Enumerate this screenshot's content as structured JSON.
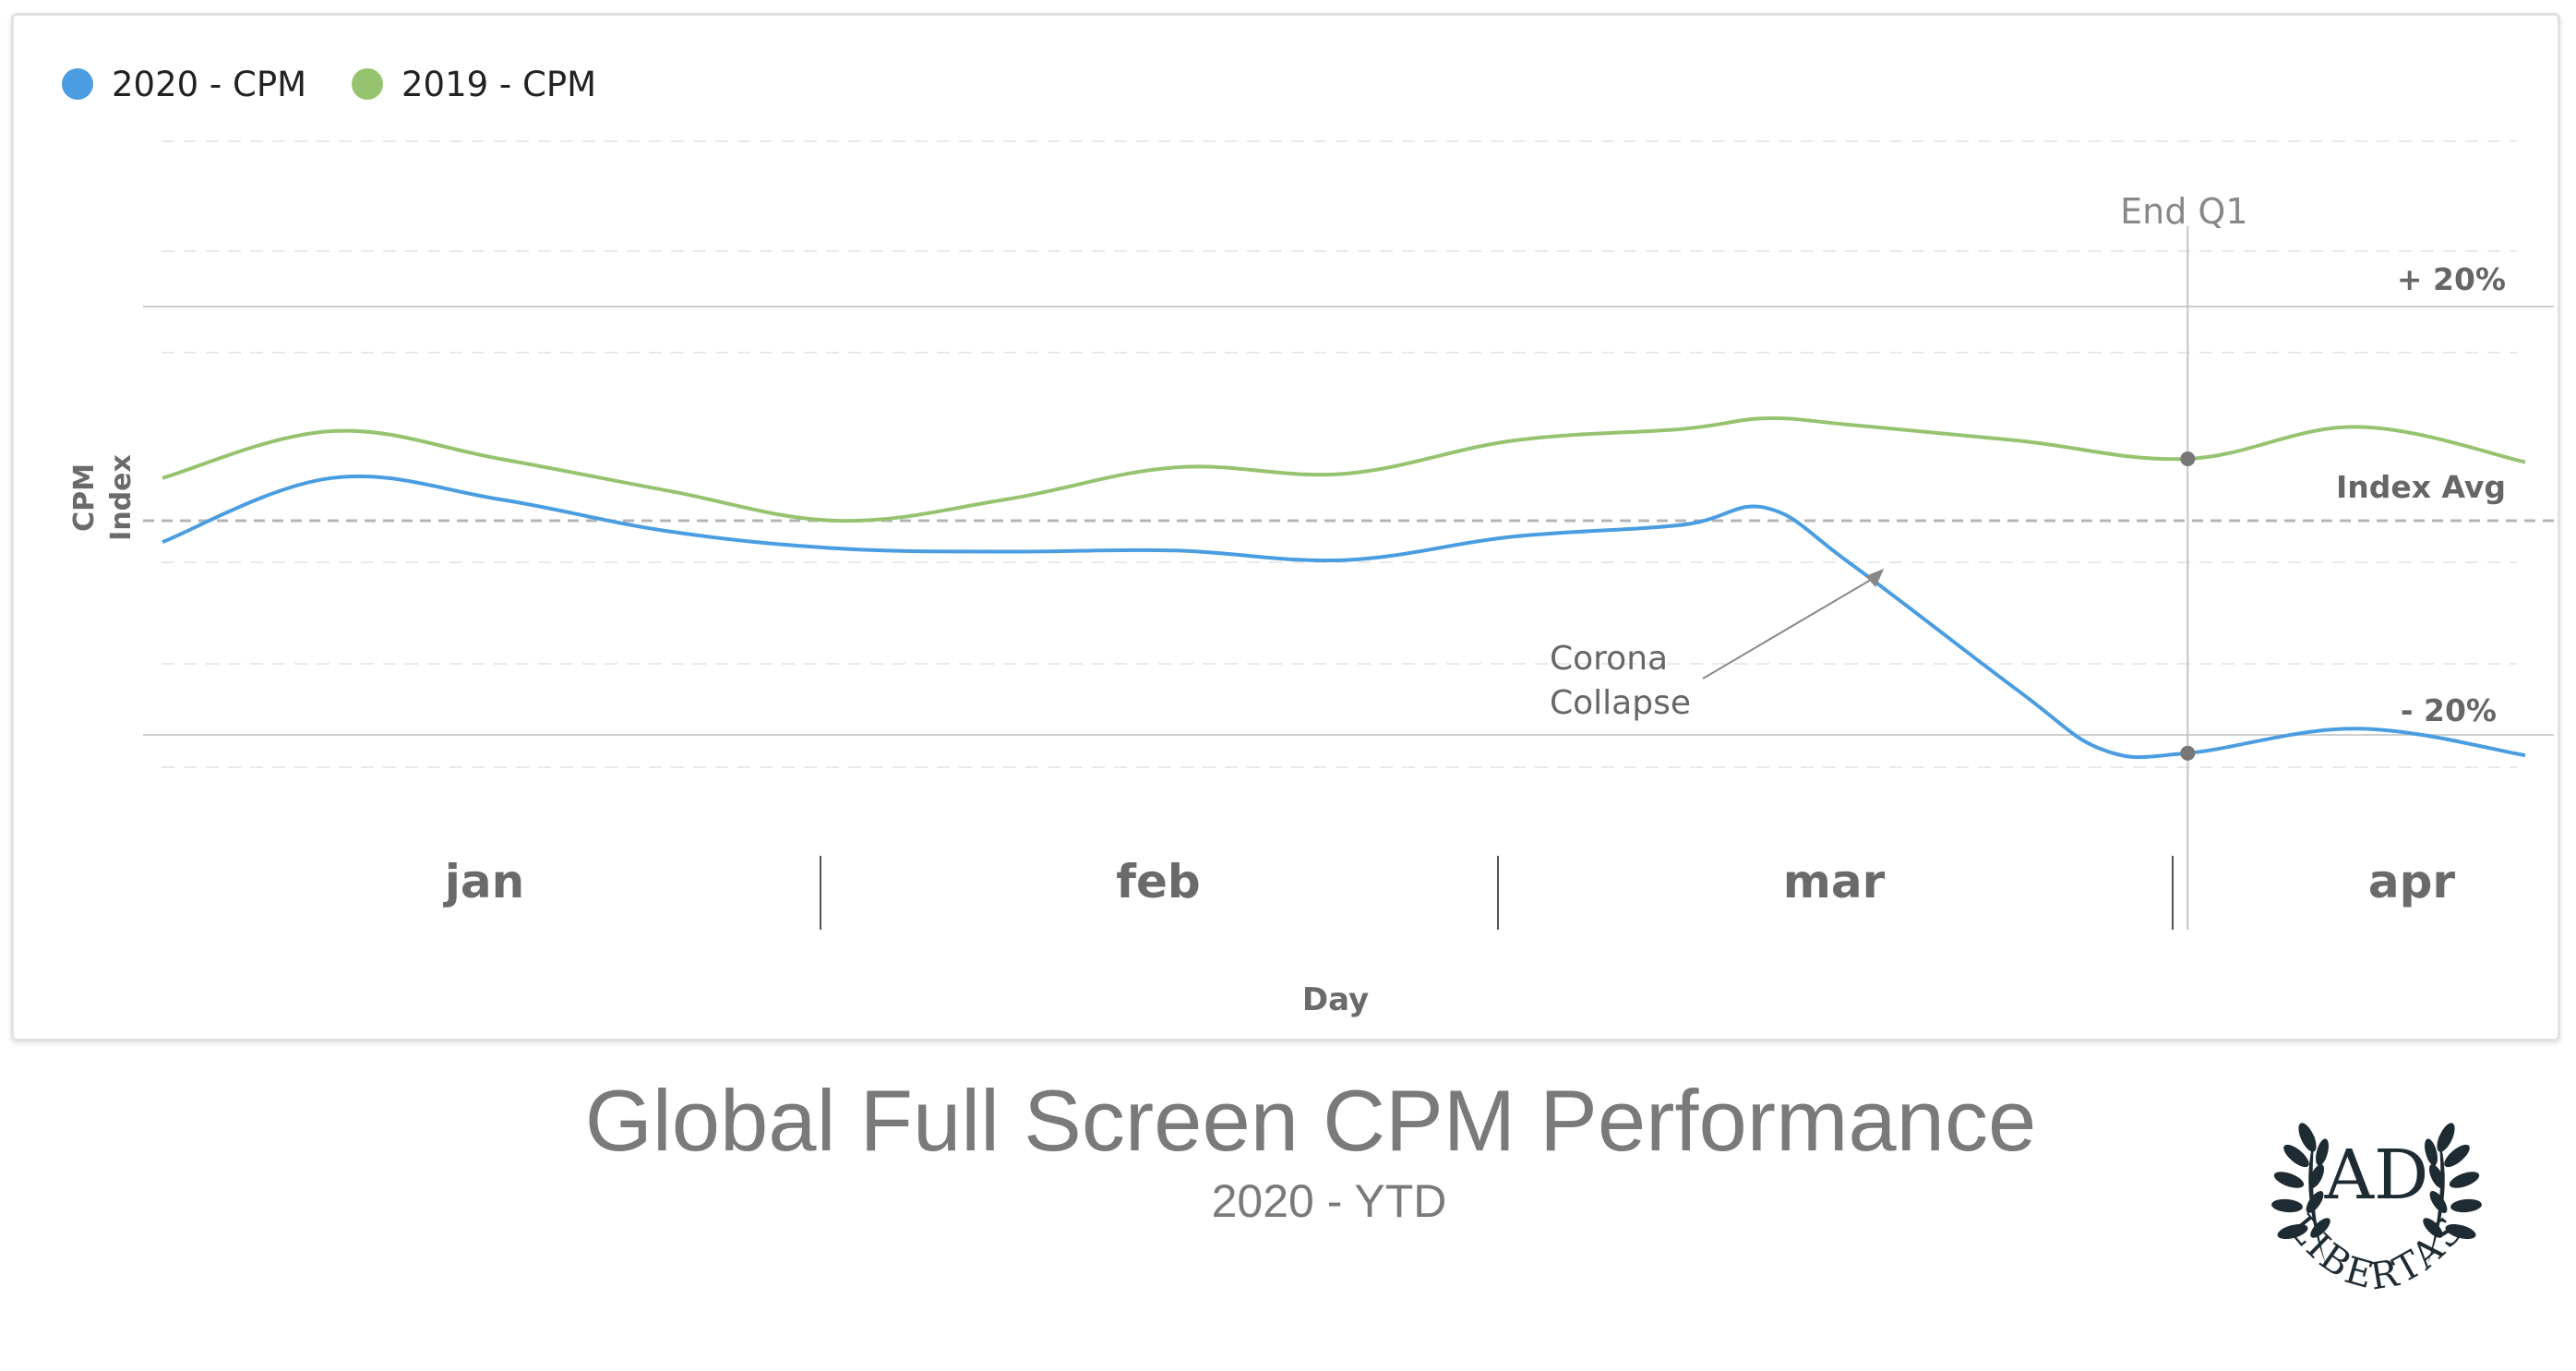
{
  "legend": [
    {
      "label": "2020 - CPM",
      "color": "#4a9de0"
    },
    {
      "label": "2019 - CPM",
      "color": "#96c36f"
    }
  ],
  "title": "Global Full Screen CPM Performance",
  "subtitle": "2020 - YTD",
  "logo": {
    "top": "AD",
    "bottom": "LIBERTAS"
  },
  "chart_data": {
    "type": "line",
    "xlabel": "Day",
    "ylabel_lines": [
      "CPM",
      "Index"
    ],
    "x_categories": [
      "jan",
      "feb",
      "mar",
      "apr"
    ],
    "x_unit": "week",
    "ylim": [
      -30,
      30
    ],
    "grid": true,
    "legend_position": "top-left",
    "reference_lines": [
      {
        "label": "+ 20%",
        "value": 20,
        "style": "solid"
      },
      {
        "label": "Index Avg",
        "value": 0,
        "style": "dashed"
      },
      {
        "label": "- 20%",
        "value": -20,
        "style": "solid"
      }
    ],
    "vertical_marker": {
      "label": "End Q1",
      "x": 12
    },
    "series": [
      {
        "name": "2020 - CPM",
        "color": "#4a9de0",
        "points": [
          [
            0,
            -2
          ],
          [
            1,
            4
          ],
          [
            2,
            2
          ],
          [
            3,
            -1
          ],
          [
            4,
            -2.6
          ],
          [
            5,
            -2.9
          ],
          [
            6,
            -2.8
          ],
          [
            7,
            -3.7
          ],
          [
            8,
            -1.5
          ],
          [
            9,
            -0.4
          ],
          [
            9.5,
            1.2
          ],
          [
            10,
            -4
          ],
          [
            11,
            -16
          ],
          [
            11.5,
            -21.5
          ],
          [
            12,
            -21.8
          ],
          [
            13,
            -19.5
          ],
          [
            14,
            -22
          ]
        ]
      },
      {
        "name": "2019 - CPM",
        "color": "#96c36f",
        "points": [
          [
            0,
            4
          ],
          [
            1,
            8.4
          ],
          [
            2,
            5.8
          ],
          [
            3,
            2.8
          ],
          [
            4,
            0
          ],
          [
            5,
            2
          ],
          [
            6,
            5
          ],
          [
            7,
            4.4
          ],
          [
            8,
            7.5
          ],
          [
            9,
            8.6
          ],
          [
            9.5,
            9.6
          ],
          [
            10,
            9
          ],
          [
            11,
            7.5
          ],
          [
            12,
            5.8
          ],
          [
            13,
            8.8
          ],
          [
            14,
            5.5
          ]
        ]
      }
    ],
    "annotation": {
      "lines": [
        "Corona",
        "Collapse"
      ],
      "target": [
        10.2,
        -4.5
      ]
    }
  }
}
